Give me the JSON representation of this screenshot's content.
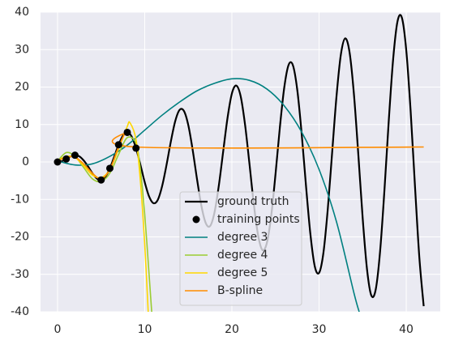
{
  "chart_data": {
    "type": "line",
    "xlim": [
      -1.95,
      43.9
    ],
    "ylim": [
      -40,
      40
    ],
    "xticks": [
      0,
      10,
      20,
      30,
      40
    ],
    "yticks": [
      -40,
      -30,
      -20,
      -10,
      0,
      10,
      20,
      30,
      40
    ],
    "grid": true,
    "legend": "lower center",
    "series": [
      {
        "name": "ground truth",
        "color": "#000000",
        "kind": "line",
        "x": [
          0,
          0.5,
          1,
          1.5,
          2,
          2.5,
          3,
          3.5,
          4,
          4.5,
          5,
          5.5,
          6,
          6.5,
          7,
          7.5,
          8,
          8.5,
          9,
          9.5,
          10,
          10.5,
          11,
          11.5,
          12,
          12.5,
          13,
          13.5,
          14,
          14.5,
          15,
          15.5,
          16,
          16.5,
          17,
          17.5,
          18,
          18.5,
          19,
          19.5,
          20,
          20.5,
          21,
          21.5,
          22,
          22.5,
          23,
          23.5,
          24,
          24.5,
          25,
          25.5,
          26,
          26.5,
          27,
          27.5,
          28,
          28.5,
          29,
          29.5,
          30,
          30.5,
          31,
          31.5,
          32,
          32.5,
          33,
          33.5,
          34,
          34.5,
          35,
          35.5,
          36,
          36.5,
          37,
          37.5,
          38,
          38.5,
          39,
          39.5,
          40,
          40.5,
          41,
          41.5,
          42
        ],
        "values": [
          0,
          0.2,
          0.8,
          1.5,
          1.8,
          1.5,
          0.4,
          -1.2,
          -3.0,
          -4.4,
          -4.8,
          -3.9,
          -1.7,
          1.4,
          4.6,
          7.0,
          7.9,
          6.8,
          3.7,
          -0.7,
          -5.4,
          -9.2,
          -11.0,
          -10.1,
          -6.4,
          -0.8,
          5.5,
          10.9,
          13.9,
          13.6,
          9.8,
          3.2,
          -4.6,
          -11.7,
          -16.3,
          -17.1,
          -13.5,
          -6.3,
          2.8,
          11.8,
          18.3,
          20.4,
          17.6,
          10.1,
          -0.2,
          -11.0,
          -19.5,
          -23.5,
          -21.7,
          -14.5,
          -3.3,
          9.2,
          19.8,
          25.9,
          25.8,
          19.2,
          7.6,
          -6.4,
          -19.2,
          -27.8,
          -29.6,
          -24.2,
          -12.5,
          2.6,
          17.6,
          28.7,
          33.0,
          29.2,
          18.0,
          2.0,
          -15.0,
          -28.7,
          -35.7,
          -34.0,
          -23.8,
          -7.4,
          11.3,
          27.6,
          37.6,
          38.5,
          29.8,
          13.6,
          -6.5,
          -25.5,
          -38.5
        ]
      },
      {
        "name": "training points",
        "color": "#000000",
        "kind": "scatter",
        "x": [
          0,
          1,
          2,
          5,
          6,
          7,
          8,
          9
        ],
        "values": [
          0,
          0.8,
          1.8,
          -4.8,
          -1.7,
          4.6,
          7.9,
          3.7
        ]
      },
      {
        "name": "degree 3",
        "color": "#008080",
        "kind": "line",
        "x": [
          0,
          2,
          4,
          6,
          8,
          10,
          12,
          14,
          16,
          18,
          20,
          22,
          24,
          26,
          28,
          30,
          32,
          34,
          34.6
        ],
        "values": [
          0.3,
          -0.8,
          -0.5,
          1.5,
          4.5,
          8.5,
          12.5,
          16,
          19,
          21,
          22.2,
          21.8,
          19.5,
          15,
          8,
          -2,
          -16,
          -35,
          -40
        ]
      },
      {
        "name": "degree 4",
        "color": "#9acd32",
        "kind": "line",
        "x": [
          0,
          1,
          2,
          3,
          4,
          5,
          6,
          7,
          8,
          9,
          9.5,
          10,
          10.5,
          10.8
        ],
        "values": [
          0.2,
          2.5,
          1.5,
          -1.5,
          -4.5,
          -5.2,
          -3.0,
          2.0,
          6.5,
          5.0,
          -2,
          -14,
          -30,
          -40
        ]
      },
      {
        "name": "degree 5",
        "color": "#ffd700",
        "kind": "line",
        "x": [
          0,
          1,
          2,
          3,
          4,
          5,
          6,
          7,
          8,
          8.3,
          9,
          9.5,
          10,
          10.4
        ],
        "values": [
          0.3,
          1.5,
          1.2,
          -1,
          -3.5,
          -4.2,
          -2,
          3.5,
          9.5,
          10.5,
          6,
          -5,
          -22,
          -40
        ]
      },
      {
        "name": "B-spline",
        "color": "#ff8c00",
        "kind": "line",
        "x": [
          0,
          1,
          2,
          3,
          4,
          5,
          6,
          7,
          8,
          9,
          42
        ],
        "values": [
          0.3,
          1.2,
          1.3,
          -0.5,
          -3,
          -4.5,
          -2,
          4,
          8,
          4,
          4
        ]
      }
    ]
  }
}
